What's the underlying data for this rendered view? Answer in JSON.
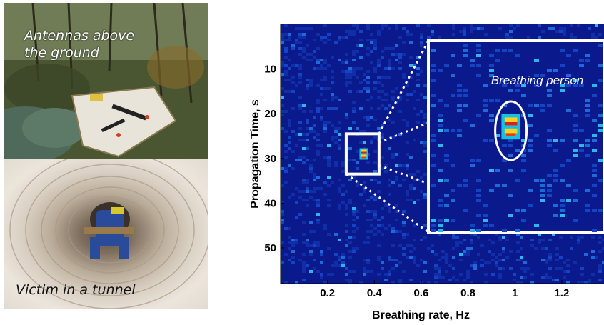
{
  "photos": {
    "top_caption_line1": "Antennas above",
    "top_caption_line2": "the ground",
    "bottom_caption": "Victim in a tunnel"
  },
  "chart_data": {
    "type": "heatmap",
    "xlabel": "Breathing rate, Hz",
    "ylabel": "Propagation Time, s",
    "xlim": [
      0.0,
      1.38
    ],
    "ylim": [
      58,
      0
    ],
    "x_ticks": [
      0.2,
      0.4,
      0.6,
      0.8,
      1.0,
      1.2
    ],
    "x_tick_labels": [
      "0.2",
      "0.4",
      "0.6",
      "0.8",
      "1",
      "1.2"
    ],
    "y_ticks": [
      10,
      20,
      30,
      40,
      50
    ],
    "y_tick_labels": [
      "10",
      "20",
      "30",
      "40",
      "50"
    ],
    "colormap": "jet",
    "background_color": "#0a1a8c",
    "hotspot": {
      "x": 0.355,
      "y": 29.0,
      "peak": "red"
    },
    "zoom_box": {
      "x_range": [
        0.28,
        0.42
      ],
      "y_range": [
        24.5,
        33.5
      ]
    },
    "annotation": "Breathing person",
    "colors": {
      "frame": "#ffffff",
      "ellipse": "#ffffff"
    }
  }
}
